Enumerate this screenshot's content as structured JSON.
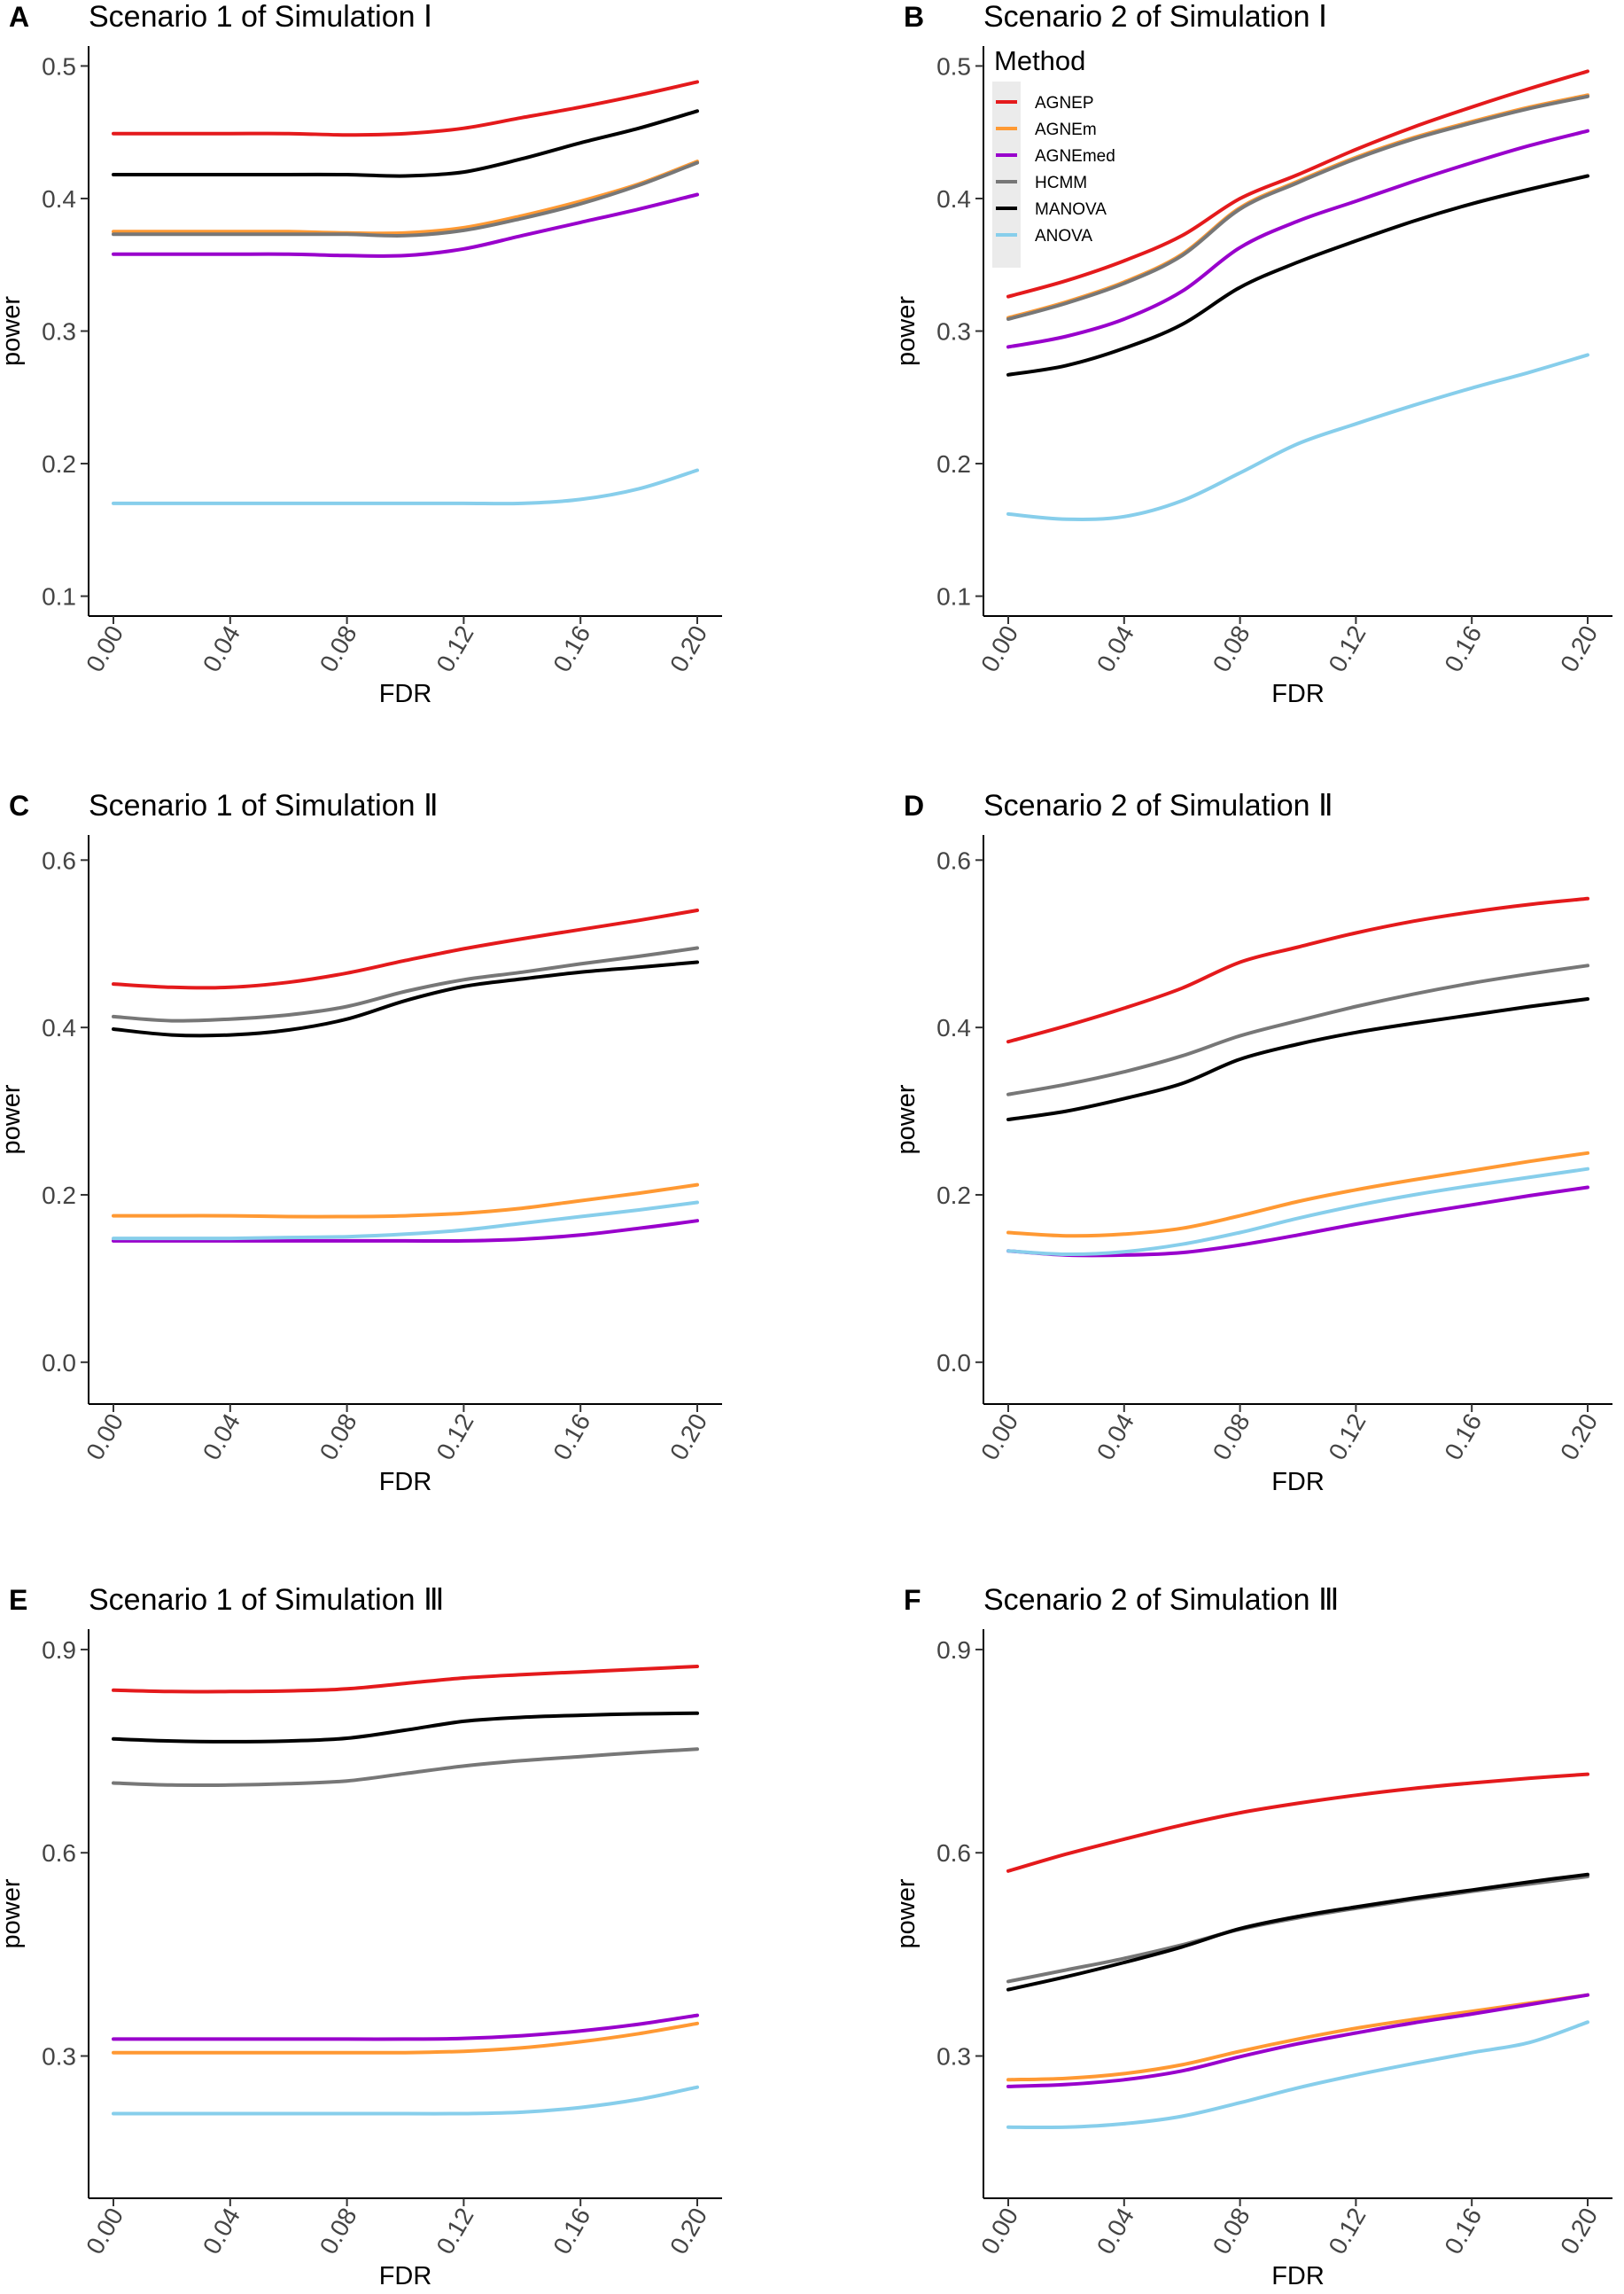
{
  "figure": {
    "x_ticks": [
      "0.00",
      "0.04",
      "0.08",
      "0.12",
      "0.16",
      "0.20"
    ],
    "series_colors": {
      "AGNEP": "#E41A1C",
      "AGNEm": "#FF9933",
      "AGNEmed": "#9900CC",
      "HCMM": "#777777",
      "MANOVA": "#000000",
      "ANOVA": "#87CEEB"
    },
    "legend": {
      "title": "Method",
      "items": [
        "AGNEP",
        "AGNEm",
        "AGNEmed",
        "HCMM",
        "MANOVA",
        "ANOVA"
      ]
    }
  },
  "chart_data": [
    {
      "type": "line",
      "letter": "A",
      "title": "Scenario 1 of Simulation Ⅰ",
      "xlabel": "FDR",
      "ylabel": "power",
      "xlim": [
        0,
        0.2
      ],
      "ylim": [
        0.085,
        0.515
      ],
      "y_ticks": [
        0.1,
        0.2,
        0.3,
        0.4,
        0.5
      ],
      "y_tick_labels": [
        "0.1",
        "0.2",
        "0.3",
        "0.4",
        "0.5"
      ],
      "x": [
        0,
        0.02,
        0.04,
        0.06,
        0.08,
        0.1,
        0.12,
        0.14,
        0.16,
        0.18,
        0.2
      ],
      "series": [
        {
          "name": "AGNEP",
          "values": [
            0.449,
            0.449,
            0.449,
            0.449,
            0.448,
            0.449,
            0.453,
            0.461,
            0.469,
            0.478,
            0.488
          ]
        },
        {
          "name": "AGNEm",
          "values": [
            0.375,
            0.375,
            0.375,
            0.375,
            0.374,
            0.374,
            0.378,
            0.387,
            0.398,
            0.411,
            0.428
          ]
        },
        {
          "name": "AGNEmed",
          "values": [
            0.358,
            0.358,
            0.358,
            0.358,
            0.357,
            0.357,
            0.362,
            0.372,
            0.382,
            0.392,
            0.403
          ]
        },
        {
          "name": "HCMM",
          "values": [
            0.373,
            0.373,
            0.373,
            0.373,
            0.373,
            0.372,
            0.376,
            0.385,
            0.396,
            0.41,
            0.427
          ]
        },
        {
          "name": "MANOVA",
          "values": [
            0.418,
            0.418,
            0.418,
            0.418,
            0.418,
            0.417,
            0.42,
            0.43,
            0.442,
            0.453,
            0.466
          ]
        },
        {
          "name": "ANOVA",
          "values": [
            0.17,
            0.17,
            0.17,
            0.17,
            0.17,
            0.17,
            0.17,
            0.17,
            0.173,
            0.181,
            0.195
          ]
        }
      ]
    },
    {
      "type": "line",
      "letter": "B",
      "title": "Scenario 2 of Simulation Ⅰ",
      "xlabel": "FDR",
      "ylabel": "power",
      "xlim": [
        0,
        0.2
      ],
      "ylim": [
        0.085,
        0.515
      ],
      "y_ticks": [
        0.1,
        0.2,
        0.3,
        0.4,
        0.5
      ],
      "y_tick_labels": [
        "0.1",
        "0.2",
        "0.3",
        "0.4",
        "0.5"
      ],
      "x": [
        0,
        0.02,
        0.04,
        0.06,
        0.08,
        0.1,
        0.12,
        0.14,
        0.16,
        0.18,
        0.2
      ],
      "series": [
        {
          "name": "AGNEP",
          "values": [
            0.326,
            0.338,
            0.353,
            0.372,
            0.4,
            0.418,
            0.437,
            0.454,
            0.469,
            0.483,
            0.496
          ]
        },
        {
          "name": "AGNEm",
          "values": [
            0.31,
            0.322,
            0.337,
            0.358,
            0.393,
            0.413,
            0.431,
            0.446,
            0.458,
            0.469,
            0.478
          ]
        },
        {
          "name": "AGNEmed",
          "values": [
            0.288,
            0.296,
            0.309,
            0.33,
            0.363,
            0.383,
            0.398,
            0.413,
            0.427,
            0.44,
            0.451
          ]
        },
        {
          "name": "HCMM",
          "values": [
            0.309,
            0.321,
            0.336,
            0.357,
            0.392,
            0.412,
            0.43,
            0.445,
            0.457,
            0.468,
            0.477
          ]
        },
        {
          "name": "MANOVA",
          "values": [
            0.267,
            0.274,
            0.287,
            0.305,
            0.333,
            0.352,
            0.368,
            0.383,
            0.396,
            0.407,
            0.417
          ]
        },
        {
          "name": "ANOVA",
          "values": [
            0.162,
            0.158,
            0.16,
            0.172,
            0.193,
            0.215,
            0.23,
            0.244,
            0.257,
            0.269,
            0.282
          ]
        }
      ]
    },
    {
      "type": "line",
      "letter": "C",
      "title": "Scenario 1 of Simulation Ⅱ",
      "xlabel": "FDR",
      "ylabel": "power",
      "xlim": [
        0,
        0.2
      ],
      "ylim": [
        -0.05,
        0.63
      ],
      "y_ticks": [
        0,
        0.2,
        0.4,
        0.6
      ],
      "y_tick_labels": [
        "0.0",
        "0.2",
        "0.4",
        "0.6"
      ],
      "x": [
        0,
        0.02,
        0.04,
        0.06,
        0.08,
        0.1,
        0.12,
        0.14,
        0.16,
        0.18,
        0.2
      ],
      "series": [
        {
          "name": "AGNEP",
          "values": [
            0.452,
            0.448,
            0.448,
            0.454,
            0.465,
            0.48,
            0.494,
            0.506,
            0.517,
            0.528,
            0.54
          ]
        },
        {
          "name": "AGNEm",
          "values": [
            0.175,
            0.175,
            0.175,
            0.174,
            0.174,
            0.175,
            0.178,
            0.184,
            0.193,
            0.202,
            0.212
          ]
        },
        {
          "name": "AGNEmed",
          "values": [
            0.145,
            0.145,
            0.145,
            0.145,
            0.145,
            0.145,
            0.145,
            0.147,
            0.152,
            0.16,
            0.169
          ]
        },
        {
          "name": "HCMM",
          "values": [
            0.413,
            0.408,
            0.41,
            0.415,
            0.425,
            0.443,
            0.457,
            0.466,
            0.476,
            0.485,
            0.495
          ]
        },
        {
          "name": "MANOVA",
          "values": [
            0.398,
            0.391,
            0.391,
            0.397,
            0.41,
            0.432,
            0.449,
            0.458,
            0.466,
            0.472,
            0.478
          ]
        },
        {
          "name": "ANOVA",
          "values": [
            0.148,
            0.148,
            0.148,
            0.149,
            0.15,
            0.153,
            0.158,
            0.166,
            0.174,
            0.182,
            0.191
          ]
        }
      ]
    },
    {
      "type": "line",
      "letter": "D",
      "title": "Scenario 2 of Simulation Ⅱ",
      "xlabel": "FDR",
      "ylabel": "power",
      "xlim": [
        0,
        0.2
      ],
      "ylim": [
        -0.05,
        0.63
      ],
      "y_ticks": [
        0,
        0.2,
        0.4,
        0.6
      ],
      "y_tick_labels": [
        "0.0",
        "0.2",
        "0.4",
        "0.6"
      ],
      "x": [
        0,
        0.02,
        0.04,
        0.06,
        0.08,
        0.1,
        0.12,
        0.14,
        0.16,
        0.18,
        0.2
      ],
      "series": [
        {
          "name": "AGNEP",
          "values": [
            0.383,
            0.402,
            0.423,
            0.447,
            0.478,
            0.496,
            0.513,
            0.527,
            0.538,
            0.547,
            0.554
          ]
        },
        {
          "name": "AGNEm",
          "values": [
            0.155,
            0.151,
            0.153,
            0.16,
            0.175,
            0.192,
            0.206,
            0.218,
            0.229,
            0.24,
            0.25
          ]
        },
        {
          "name": "AGNEmed",
          "values": [
            0.133,
            0.128,
            0.128,
            0.131,
            0.14,
            0.152,
            0.165,
            0.177,
            0.188,
            0.199,
            0.209
          ]
        },
        {
          "name": "HCMM",
          "values": [
            0.32,
            0.332,
            0.347,
            0.366,
            0.39,
            0.408,
            0.425,
            0.44,
            0.453,
            0.464,
            0.474
          ]
        },
        {
          "name": "MANOVA",
          "values": [
            0.29,
            0.3,
            0.315,
            0.333,
            0.362,
            0.38,
            0.394,
            0.405,
            0.415,
            0.425,
            0.434
          ]
        },
        {
          "name": "ANOVA",
          "values": [
            0.133,
            0.129,
            0.132,
            0.141,
            0.155,
            0.172,
            0.187,
            0.2,
            0.211,
            0.221,
            0.231
          ]
        }
      ]
    },
    {
      "type": "line",
      "letter": "E",
      "title": "Scenario 1 of Simulation Ⅲ",
      "xlabel": "FDR",
      "ylabel": "power",
      "xlim": [
        0,
        0.2
      ],
      "ylim": [
        0.09,
        0.93
      ],
      "y_ticks": [
        0.3,
        0.6,
        0.9
      ],
      "y_tick_labels": [
        "0.3",
        "0.6",
        "0.9"
      ],
      "x": [
        0,
        0.02,
        0.04,
        0.06,
        0.08,
        0.1,
        0.12,
        0.14,
        0.16,
        0.18,
        0.2
      ],
      "series": [
        {
          "name": "AGNEP",
          "values": [
            0.84,
            0.838,
            0.838,
            0.839,
            0.842,
            0.85,
            0.858,
            0.863,
            0.867,
            0.871,
            0.875
          ]
        },
        {
          "name": "AGNEm",
          "values": [
            0.305,
            0.305,
            0.305,
            0.305,
            0.305,
            0.305,
            0.307,
            0.312,
            0.321,
            0.333,
            0.348
          ]
        },
        {
          "name": "AGNEmed",
          "values": [
            0.325,
            0.325,
            0.325,
            0.325,
            0.325,
            0.325,
            0.326,
            0.33,
            0.337,
            0.347,
            0.36
          ]
        },
        {
          "name": "HCMM",
          "values": [
            0.703,
            0.7,
            0.7,
            0.702,
            0.706,
            0.717,
            0.728,
            0.736,
            0.742,
            0.748,
            0.753
          ]
        },
        {
          "name": "MANOVA",
          "values": [
            0.768,
            0.765,
            0.764,
            0.765,
            0.769,
            0.781,
            0.794,
            0.8,
            0.803,
            0.805,
            0.806
          ]
        },
        {
          "name": "ANOVA",
          "values": [
            0.215,
            0.215,
            0.215,
            0.215,
            0.215,
            0.215,
            0.215,
            0.217,
            0.224,
            0.236,
            0.254
          ]
        }
      ]
    },
    {
      "type": "line",
      "letter": "F",
      "title": "Scenario 2 of Simulation Ⅲ",
      "xlabel": "FDR",
      "ylabel": "power",
      "xlim": [
        0,
        0.2
      ],
      "ylim": [
        0.09,
        0.93
      ],
      "y_ticks": [
        0.3,
        0.6,
        0.9
      ],
      "y_tick_labels": [
        "0.3",
        "0.6",
        "0.9"
      ],
      "x": [
        0,
        0.02,
        0.04,
        0.06,
        0.08,
        0.1,
        0.12,
        0.14,
        0.16,
        0.18,
        0.2
      ],
      "series": [
        {
          "name": "AGNEP",
          "values": [
            0.573,
            0.598,
            0.62,
            0.641,
            0.659,
            0.673,
            0.685,
            0.695,
            0.703,
            0.71,
            0.716
          ]
        },
        {
          "name": "AGNEm",
          "values": [
            0.265,
            0.267,
            0.274,
            0.287,
            0.307,
            0.325,
            0.341,
            0.354,
            0.366,
            0.378,
            0.39
          ]
        },
        {
          "name": "AGNEmed",
          "values": [
            0.255,
            0.258,
            0.265,
            0.278,
            0.299,
            0.318,
            0.334,
            0.349,
            0.362,
            0.376,
            0.39
          ]
        },
        {
          "name": "HCMM",
          "values": [
            0.41,
            0.427,
            0.444,
            0.464,
            0.487,
            0.504,
            0.518,
            0.531,
            0.543,
            0.554,
            0.565
          ]
        },
        {
          "name": "MANOVA",
          "values": [
            0.398,
            0.417,
            0.438,
            0.461,
            0.488,
            0.506,
            0.52,
            0.533,
            0.545,
            0.557,
            0.568
          ]
        },
        {
          "name": "ANOVA",
          "values": [
            0.195,
            0.195,
            0.2,
            0.211,
            0.231,
            0.253,
            0.272,
            0.289,
            0.305,
            0.32,
            0.35
          ]
        }
      ]
    }
  ]
}
